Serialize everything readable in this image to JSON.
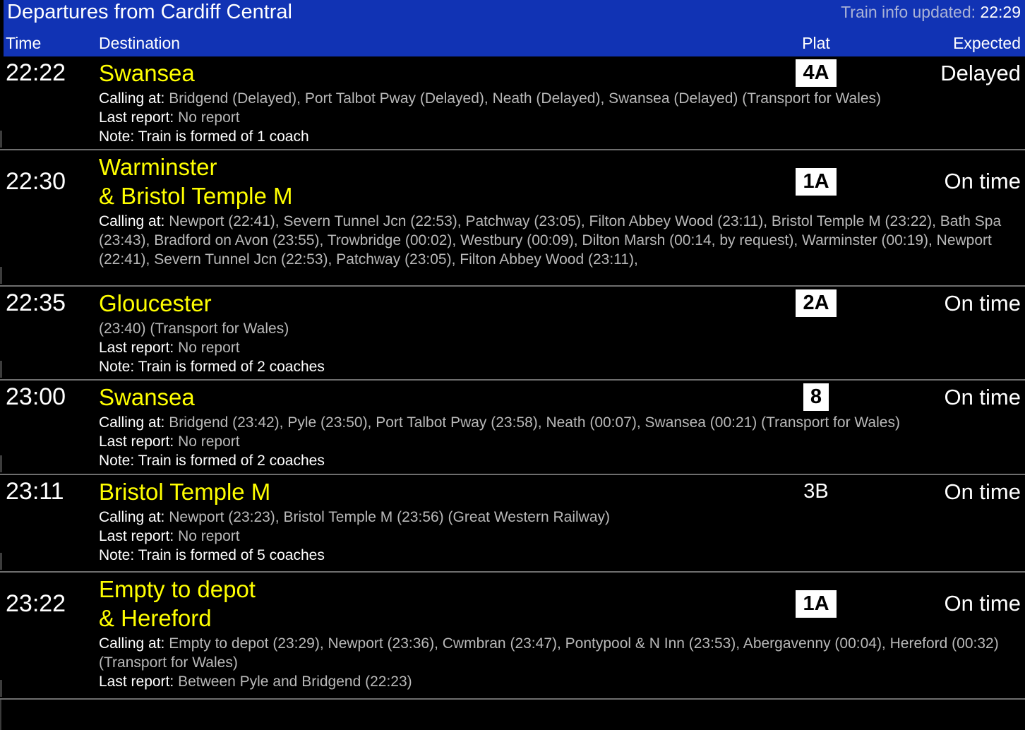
{
  "header": {
    "title": "Departures from Cardiff Central",
    "updated_label": "Train info updated:",
    "updated_time": "22:29",
    "columns": {
      "time": "Time",
      "destination": "Destination",
      "platform": "Plat",
      "expected": "Expected"
    }
  },
  "colors": {
    "header_blue": "#1133b4",
    "updated_grey": "#aab3d6",
    "destination_yellow": "#ffff00",
    "detail_grey": "#b9b9b9",
    "separator_grey": "#6e6e6e",
    "platform_badge_bg": "#ffffff"
  },
  "departures": [
    {
      "time": "22:22",
      "destination_lines": [
        "Swansea"
      ],
      "platform": "4A",
      "platform_highlighted": true,
      "expected": "Delayed",
      "details": [
        {
          "name": "calling-at",
          "label": "Calling at:",
          "text": "Bridgend (Delayed), Port Talbot Pway (Delayed), Neath (Delayed), Swansea (Delayed) (Transport for Wales)",
          "style": "grey"
        },
        {
          "name": "last-report",
          "label": "Last report:",
          "text": "No report",
          "style": "grey"
        },
        {
          "name": "note",
          "label": "Note:",
          "text": "Train is formed of 1 coach",
          "style": "white"
        }
      ]
    },
    {
      "time": "22:30",
      "destination_lines": [
        "Warminster",
        "& Bristol Temple M"
      ],
      "platform": "1A",
      "platform_highlighted": true,
      "expected": "On time",
      "details": [
        {
          "name": "calling-at",
          "label": "Calling at:",
          "text": "Newport (22:41), Severn Tunnel Jcn (22:53), Patchway (23:05), Filton Abbey Wood (23:11), Bristol Temple M (23:22), Bath Spa (23:43), Bradford on Avon (23:55), Trowbridge (00:02), Westbury (00:09), Dilton Marsh (00:14, by request), Warminster (00:19), Newport (22:41), Severn Tunnel Jcn (22:53), Patchway (23:05), Filton Abbey Wood (23:11),",
          "style": "grey"
        }
      ]
    },
    {
      "time": "22:35",
      "destination_lines": [
        "Gloucester"
      ],
      "platform": "2A",
      "platform_highlighted": true,
      "expected": "On time",
      "details": [
        {
          "name": "calling-at",
          "label": "",
          "text": "(23:40) (Transport for Wales)",
          "style": "grey"
        },
        {
          "name": "last-report",
          "label": "Last report:",
          "text": "No report",
          "style": "grey"
        },
        {
          "name": "note",
          "label": "Note:",
          "text": "Train is formed of 2 coaches",
          "style": "white"
        }
      ]
    },
    {
      "time": "23:00",
      "destination_lines": [
        "Swansea"
      ],
      "platform": "8",
      "platform_highlighted": true,
      "expected": "On time",
      "details": [
        {
          "name": "calling-at",
          "label": "Calling at:",
          "text": "Bridgend (23:42), Pyle (23:50), Port Talbot Pway (23:58), Neath (00:07), Swansea (00:21) (Transport for Wales)",
          "style": "grey"
        },
        {
          "name": "last-report",
          "label": "Last report:",
          "text": "No report",
          "style": "grey"
        },
        {
          "name": "note",
          "label": "Note:",
          "text": "Train is formed of 2 coaches",
          "style": "white"
        }
      ]
    },
    {
      "time": "23:11",
      "destination_lines": [
        "Bristol Temple M"
      ],
      "platform": "3B",
      "platform_highlighted": false,
      "expected": "On time",
      "details": [
        {
          "name": "calling-at",
          "label": "Calling at:",
          "text": "Newport (23:23), Bristol Temple M (23:56) (Great Western Railway)",
          "style": "grey"
        },
        {
          "name": "last-report",
          "label": "Last report:",
          "text": "No report",
          "style": "grey"
        },
        {
          "name": "note",
          "label": "Note:",
          "text": "Train is formed of 5 coaches",
          "style": "white"
        }
      ]
    },
    {
      "time": "23:22",
      "destination_lines": [
        "Empty to depot",
        "& Hereford"
      ],
      "platform": "1A",
      "platform_highlighted": true,
      "expected": "On time",
      "details": [
        {
          "name": "calling-at",
          "label": "Calling at:",
          "text": "Empty to depot (23:29), Newport (23:36), Cwmbran (23:47), Pontypool & N Inn (23:53), Abergavenny (00:04), Hereford (00:32) (Transport for Wales)",
          "style": "grey"
        },
        {
          "name": "last-report",
          "label": "Last report:",
          "text": "Between Pyle and Bridgend (22:23)",
          "style": "grey"
        }
      ]
    }
  ]
}
